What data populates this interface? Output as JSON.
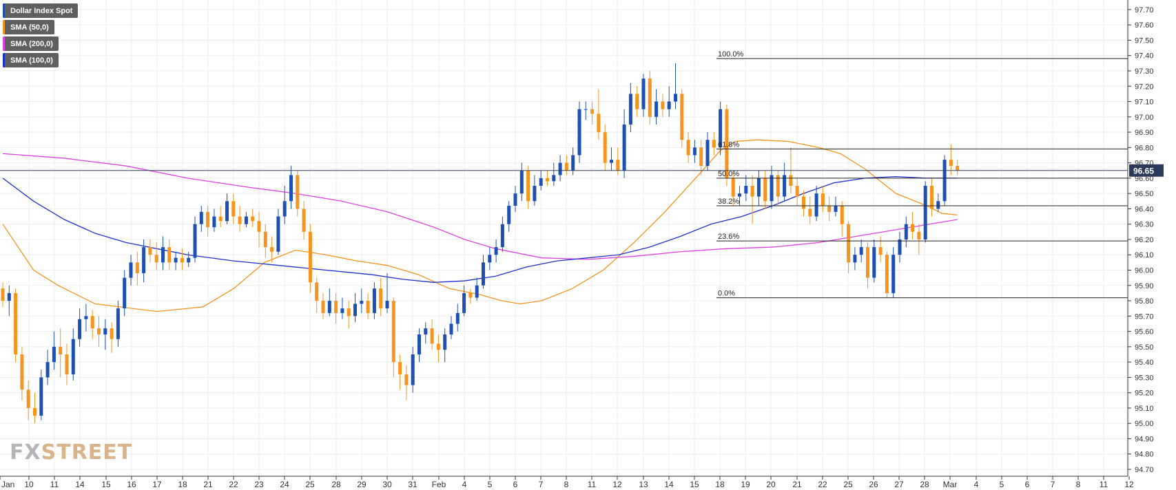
{
  "chart_data": {
    "type": "candlestick",
    "title": "",
    "legend": [
      {
        "name": "Dollar Index Spot",
        "color": "#1e4fb3"
      },
      {
        "name": "SMA (50,0)",
        "color": "#f7941d"
      },
      {
        "name": "SMA (200,0)",
        "color": "#e040e0"
      },
      {
        "name": "SMA (100,0)",
        "color": "#1e2fd0"
      }
    ],
    "ylim": [
      94.7,
      97.75
    ],
    "y_ticks": [
      "97.70",
      "97.60",
      "97.50",
      "97.40",
      "97.30",
      "97.20",
      "97.10",
      "97.00",
      "96.90",
      "96.80",
      "96.70",
      "96.60",
      "96.50",
      "96.40",
      "96.30",
      "96.20",
      "96.10",
      "96.00",
      "95.90",
      "95.80",
      "95.70",
      "95.60",
      "95.50",
      "95.40",
      "95.30",
      "95.20",
      "95.10",
      "95.00",
      "94.90",
      "94.80",
      "94.70"
    ],
    "x_ticks": [
      "Jan",
      "10",
      "11",
      "14",
      "15",
      "16",
      "17",
      "18",
      "21",
      "22",
      "23",
      "24",
      "25",
      "28",
      "29",
      "30",
      "31",
      "Feb",
      "4",
      "5",
      "6",
      "7",
      "8",
      "11",
      "12",
      "13",
      "14",
      "15",
      "18",
      "19",
      "20",
      "21",
      "22",
      "25",
      "26",
      "27",
      "28",
      "Mar",
      "4",
      "5",
      "6",
      "7",
      "8",
      "11",
      "12"
    ],
    "current_price": 96.65,
    "current_price_label": "96.65",
    "fibonacci": {
      "levels": [
        {
          "label": "100.0%",
          "value": 97.38
        },
        {
          "label": "61.8%",
          "value": 96.79
        },
        {
          "label": "50.0%",
          "value": 96.6
        },
        {
          "label": "38.2%",
          "value": 96.42
        },
        {
          "label": "23.6%",
          "value": 96.19
        },
        {
          "label": "0.0%",
          "value": 95.82
        }
      ]
    },
    "sma": [
      {
        "name": "SMA (50,0)",
        "color": "#f7941d",
        "points": [
          [
            0,
            96.3
          ],
          [
            10,
            96.0
          ],
          [
            18,
            95.9
          ],
          [
            30,
            95.78
          ],
          [
            50,
            95.73
          ],
          [
            65,
            95.76
          ],
          [
            75,
            95.88
          ],
          [
            85,
            96.05
          ],
          [
            95,
            96.13
          ],
          [
            105,
            96.1
          ],
          [
            115,
            96.06
          ],
          [
            125,
            96.03
          ],
          [
            135,
            95.97
          ],
          [
            145,
            95.88
          ],
          [
            155,
            95.84
          ],
          [
            162,
            95.8
          ],
          [
            168,
            95.78
          ],
          [
            175,
            95.8
          ],
          [
            185,
            95.88
          ],
          [
            195,
            96.0
          ],
          [
            205,
            96.18
          ],
          [
            215,
            96.38
          ],
          [
            225,
            96.6
          ],
          [
            233,
            96.78
          ],
          [
            238,
            96.84
          ],
          [
            245,
            96.85
          ],
          [
            255,
            96.84
          ],
          [
            265,
            96.8
          ],
          [
            272,
            96.76
          ],
          [
            280,
            96.66
          ],
          [
            290,
            96.5
          ],
          [
            300,
            96.42
          ],
          [
            305,
            96.37
          ],
          [
            310,
            96.36
          ]
        ]
      },
      {
        "name": "SMA (200,0)",
        "color": "#e040e0",
        "points": [
          [
            0,
            96.76
          ],
          [
            20,
            96.73
          ],
          [
            40,
            96.68
          ],
          [
            60,
            96.6
          ],
          [
            80,
            96.54
          ],
          [
            95,
            96.5
          ],
          [
            110,
            96.45
          ],
          [
            125,
            96.38
          ],
          [
            140,
            96.28
          ],
          [
            150,
            96.2
          ],
          [
            160,
            96.14
          ],
          [
            175,
            96.08
          ],
          [
            190,
            96.07
          ],
          [
            205,
            96.09
          ],
          [
            220,
            96.12
          ],
          [
            235,
            96.14
          ],
          [
            250,
            96.15
          ],
          [
            265,
            96.18
          ],
          [
            280,
            96.23
          ],
          [
            295,
            96.28
          ],
          [
            310,
            96.33
          ]
        ]
      },
      {
        "name": "SMA (100,0)",
        "color": "#1e2fd0",
        "points": [
          [
            0,
            96.6
          ],
          [
            10,
            96.45
          ],
          [
            20,
            96.33
          ],
          [
            30,
            96.24
          ],
          [
            40,
            96.18
          ],
          [
            50,
            96.14
          ],
          [
            60,
            96.1
          ],
          [
            75,
            96.06
          ],
          [
            90,
            96.03
          ],
          [
            105,
            96.0
          ],
          [
            120,
            95.97
          ],
          [
            130,
            95.94
          ],
          [
            140,
            95.92
          ],
          [
            150,
            95.93
          ],
          [
            160,
            95.96
          ],
          [
            170,
            96.02
          ],
          [
            180,
            96.06
          ],
          [
            190,
            96.08
          ],
          [
            200,
            96.1
          ],
          [
            210,
            96.15
          ],
          [
            220,
            96.22
          ],
          [
            230,
            96.3
          ],
          [
            240,
            96.35
          ],
          [
            250,
            96.42
          ],
          [
            260,
            96.5
          ],
          [
            270,
            96.57
          ],
          [
            280,
            96.6
          ],
          [
            290,
            96.61
          ],
          [
            300,
            96.6
          ],
          [
            310,
            96.6
          ]
        ]
      }
    ],
    "candles": [
      [
        95.88,
        95.8,
        95.92,
        95.76
      ],
      [
        95.8,
        95.85,
        95.9,
        95.7
      ],
      [
        95.85,
        95.45,
        95.88,
        95.4
      ],
      [
        95.45,
        95.22,
        95.5,
        95.15
      ],
      [
        95.22,
        95.1,
        95.28,
        95.02
      ],
      [
        95.1,
        95.05,
        95.2,
        95.0
      ],
      [
        95.05,
        95.3,
        95.35,
        95.02
      ],
      [
        95.3,
        95.4,
        95.48,
        95.25
      ],
      [
        95.4,
        95.5,
        95.6,
        95.35
      ],
      [
        95.5,
        95.45,
        95.62,
        95.3
      ],
      [
        95.45,
        95.32,
        95.52,
        95.25
      ],
      [
        95.32,
        95.55,
        95.62,
        95.28
      ],
      [
        95.55,
        95.68,
        95.75,
        95.5
      ],
      [
        95.68,
        95.7,
        95.78,
        95.6
      ],
      [
        95.7,
        95.62,
        95.74,
        95.55
      ],
      [
        95.62,
        95.58,
        95.7,
        95.5
      ],
      [
        95.58,
        95.62,
        95.68,
        95.48
      ],
      [
        95.62,
        95.55,
        95.66,
        95.46
      ],
      [
        95.55,
        95.75,
        95.8,
        95.5
      ],
      [
        95.75,
        95.95,
        96.0,
        95.7
      ],
      [
        95.95,
        96.05,
        96.1,
        95.9
      ],
      [
        96.05,
        95.98,
        96.12,
        95.9
      ],
      [
        95.98,
        96.15,
        96.2,
        95.92
      ],
      [
        96.15,
        96.1,
        96.2,
        96.05
      ],
      [
        96.1,
        96.05,
        96.18,
        96.0
      ],
      [
        96.05,
        96.15,
        96.22,
        96.0
      ],
      [
        96.15,
        96.05,
        96.2,
        96.0
      ],
      [
        96.05,
        96.08,
        96.12,
        96.0
      ],
      [
        96.08,
        96.05,
        96.14,
        96.0
      ],
      [
        96.05,
        96.08,
        96.12,
        96.02
      ],
      [
        96.08,
        96.3,
        96.35,
        96.05
      ],
      [
        96.3,
        96.38,
        96.42,
        96.25
      ],
      [
        96.38,
        96.28,
        96.42,
        96.22
      ],
      [
        96.28,
        96.35,
        96.4,
        96.25
      ],
      [
        96.35,
        96.32,
        96.42,
        96.28
      ],
      [
        96.32,
        96.45,
        96.5,
        96.3
      ],
      [
        96.45,
        96.35,
        96.5,
        96.3
      ],
      [
        96.35,
        96.3,
        96.42,
        96.25
      ],
      [
        96.3,
        96.35,
        96.38,
        96.28
      ],
      [
        96.35,
        96.32,
        96.4,
        96.28
      ],
      [
        96.32,
        96.25,
        96.38,
        96.15
      ],
      [
        96.25,
        96.15,
        96.3,
        96.08
      ],
      [
        96.15,
        96.12,
        96.22,
        96.05
      ],
      [
        96.12,
        96.35,
        96.4,
        96.1
      ],
      [
        96.35,
        96.45,
        96.55,
        96.3
      ],
      [
        96.45,
        96.62,
        96.68,
        96.4
      ],
      [
        96.62,
        96.4,
        96.65,
        96.35
      ],
      [
        96.4,
        96.25,
        96.45,
        96.2
      ],
      [
        96.25,
        95.92,
        96.3,
        95.85
      ],
      [
        95.92,
        95.8,
        95.95,
        95.72
      ],
      [
        95.8,
        95.72,
        95.85,
        95.68
      ],
      [
        95.72,
        95.8,
        95.88,
        95.7
      ],
      [
        95.8,
        95.72,
        95.85,
        95.65
      ],
      [
        95.72,
        95.75,
        95.82,
        95.68
      ],
      [
        95.75,
        95.7,
        95.8,
        95.62
      ],
      [
        95.7,
        95.78,
        95.85,
        95.66
      ],
      [
        95.78,
        95.8,
        95.88,
        95.72
      ],
      [
        95.8,
        95.72,
        95.85,
        95.68
      ],
      [
        95.72,
        95.88,
        95.92,
        95.68
      ],
      [
        95.88,
        95.75,
        95.95,
        95.7
      ],
      [
        95.75,
        95.8,
        95.98,
        95.72
      ],
      [
        95.8,
        95.4,
        95.82,
        95.3
      ],
      [
        95.4,
        95.32,
        95.45,
        95.22
      ],
      [
        95.32,
        95.25,
        95.38,
        95.15
      ],
      [
        95.25,
        95.45,
        95.5,
        95.2
      ],
      [
        95.45,
        95.58,
        95.62,
        95.4
      ],
      [
        95.58,
        95.62,
        95.66,
        95.52
      ],
      [
        95.62,
        95.52,
        95.68,
        95.48
      ],
      [
        95.52,
        95.48,
        95.58,
        95.4
      ],
      [
        95.48,
        95.58,
        95.62,
        95.4
      ],
      [
        95.58,
        95.65,
        95.7,
        95.55
      ],
      [
        95.65,
        95.72,
        95.78,
        95.6
      ],
      [
        95.72,
        95.85,
        95.9,
        95.7
      ],
      [
        95.85,
        95.82,
        95.88,
        95.78
      ],
      [
        95.82,
        95.9,
        95.95,
        95.8
      ],
      [
        95.9,
        96.05,
        96.1,
        95.88
      ],
      [
        96.05,
        96.1,
        96.15,
        96.0
      ],
      [
        96.1,
        96.15,
        96.2,
        96.05
      ],
      [
        96.15,
        96.3,
        96.35,
        96.12
      ],
      [
        96.3,
        96.42,
        96.45,
        96.25
      ],
      [
        96.42,
        96.5,
        96.55,
        96.38
      ],
      [
        96.5,
        96.65,
        96.7,
        96.45
      ],
      [
        96.65,
        96.45,
        96.68,
        96.4
      ],
      [
        96.45,
        96.55,
        96.62,
        96.42
      ],
      [
        96.55,
        96.6,
        96.65,
        96.52
      ],
      [
        96.6,
        96.58,
        96.65,
        96.55
      ],
      [
        96.58,
        96.62,
        96.7,
        96.55
      ],
      [
        96.62,
        96.7,
        96.75,
        96.58
      ],
      [
        96.7,
        96.65,
        96.75,
        96.62
      ],
      [
        96.65,
        96.75,
        96.8,
        96.62
      ],
      [
        96.75,
        97.05,
        97.1,
        96.7
      ],
      [
        97.05,
        97.05,
        97.1,
        96.98
      ],
      [
        97.05,
        97.02,
        97.1,
        96.95
      ],
      [
        97.02,
        96.9,
        97.18,
        96.85
      ],
      [
        96.9,
        96.7,
        96.95,
        96.65
      ],
      [
        96.7,
        96.72,
        96.8,
        96.65
      ],
      [
        96.72,
        96.65,
        96.8,
        96.62
      ],
      [
        96.65,
        96.95,
        97.05,
        96.6
      ],
      [
        96.95,
        97.15,
        97.22,
        96.9
      ],
      [
        97.15,
        97.05,
        97.2,
        97.0
      ],
      [
        97.05,
        97.25,
        97.28,
        97.0
      ],
      [
        97.25,
        97.0,
        97.3,
        96.95
      ],
      [
        97.0,
        97.1,
        97.18,
        96.95
      ],
      [
        97.1,
        97.05,
        97.15,
        97.0
      ],
      [
        97.05,
        97.1,
        97.2,
        97.0
      ],
      [
        97.1,
        97.15,
        97.35,
        97.05
      ],
      [
        97.15,
        96.85,
        97.18,
        96.8
      ],
      [
        96.85,
        96.75,
        96.9,
        96.7
      ],
      [
        96.75,
        96.8,
        96.85,
        96.7
      ],
      [
        96.8,
        96.68,
        96.85,
        96.62
      ],
      [
        96.68,
        96.85,
        96.9,
        96.65
      ],
      [
        96.85,
        96.8,
        96.9,
        96.75
      ],
      [
        96.8,
        97.05,
        97.1,
        96.75
      ],
      [
        97.05,
        96.6,
        97.08,
        96.55
      ],
      [
        96.6,
        96.48,
        96.65,
        96.42
      ],
      [
        96.48,
        96.5,
        96.55,
        96.42
      ],
      [
        96.5,
        96.55,
        96.62,
        96.45
      ],
      [
        96.55,
        96.48,
        96.62,
        96.3
      ],
      [
        96.48,
        96.6,
        96.65,
        96.42
      ],
      [
        96.6,
        96.45,
        96.65,
        96.4
      ],
      [
        96.45,
        96.62,
        96.68,
        96.4
      ],
      [
        96.62,
        96.48,
        96.65,
        96.42
      ],
      [
        96.48,
        96.62,
        96.7,
        96.45
      ],
      [
        96.62,
        96.55,
        96.8,
        96.5
      ],
      [
        96.55,
        96.48,
        96.6,
        96.42
      ],
      [
        96.48,
        96.4,
        96.52,
        96.35
      ],
      [
        96.4,
        96.35,
        96.48,
        96.3
      ],
      [
        96.35,
        96.5,
        96.55,
        96.32
      ],
      [
        96.5,
        96.42,
        96.55,
        96.38
      ],
      [
        96.42,
        96.38,
        96.48,
        96.32
      ],
      [
        96.38,
        96.42,
        96.48,
        96.35
      ],
      [
        96.42,
        96.3,
        96.45,
        96.22
      ],
      [
        96.3,
        96.05,
        96.32,
        95.98
      ],
      [
        96.05,
        96.1,
        96.15,
        96.0
      ],
      [
        96.1,
        96.15,
        96.2,
        96.05
      ],
      [
        96.15,
        95.95,
        96.18,
        95.88
      ],
      [
        95.95,
        96.15,
        96.2,
        95.92
      ],
      [
        96.15,
        96.1,
        96.22,
        96.05
      ],
      [
        96.1,
        95.85,
        96.12,
        95.82
      ],
      [
        95.85,
        96.1,
        96.15,
        95.82
      ],
      [
        96.1,
        96.2,
        96.25,
        96.05
      ],
      [
        96.2,
        96.3,
        96.35,
        96.15
      ],
      [
        96.3,
        96.25,
        96.38,
        96.2
      ],
      [
        96.25,
        96.2,
        96.3,
        96.1
      ],
      [
        96.2,
        96.55,
        96.58,
        96.18
      ],
      [
        96.55,
        96.4,
        96.6,
        96.35
      ],
      [
        96.4,
        96.45,
        96.5,
        96.38
      ],
      [
        96.45,
        96.72,
        96.75,
        96.42
      ],
      [
        96.72,
        96.68,
        96.82,
        96.62
      ],
      [
        96.68,
        96.65,
        96.72,
        96.62
      ]
    ]
  },
  "watermark": {
    "a": "FX",
    "b": "STREET"
  }
}
